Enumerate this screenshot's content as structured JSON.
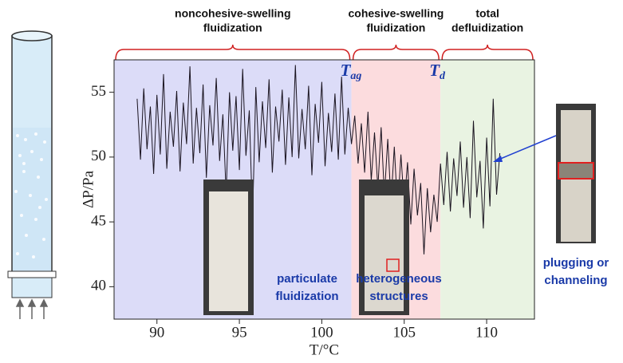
{
  "chart_data": {
    "type": "line",
    "x_label": "T/°C",
    "y_label": "ΔP/Pa",
    "xlim": [
      87.4,
      112.9
    ],
    "ylim": [
      37.5,
      57.5
    ],
    "xticks": [
      90,
      95,
      100,
      105,
      110
    ],
    "yticks": [
      40,
      45,
      50,
      55
    ],
    "boundaries": [
      101.8,
      107.2
    ],
    "regions": [
      {
        "lines": [
          "noncohesive-swelling",
          "fluidization"
        ],
        "color": "#dcdcf8",
        "note": [
          "particulate",
          "fluidization"
        ]
      },
      {
        "lines": [
          "cohesive-swelling",
          "fluidization"
        ],
        "color": "#fcdcde",
        "note": [
          "heterogeneous",
          "structures"
        ]
      },
      {
        "lines": [
          "total",
          "defluidization"
        ],
        "color": "#e9f3e2",
        "note": [
          "plugging or",
          "channeling"
        ]
      }
    ],
    "markers": [
      {
        "label": "T",
        "sub": "ag"
      },
      {
        "label": "T",
        "sub": "d"
      }
    ],
    "series": [
      {
        "color": "#1a1420",
        "x": [
          88.8,
          89.0,
          89.2,
          89.4,
          89.6,
          89.8,
          90.0,
          90.2,
          90.4,
          90.6,
          90.8,
          91.0,
          91.2,
          91.4,
          91.6,
          91.8,
          92.0,
          92.2,
          92.4,
          92.6,
          92.8,
          93.0,
          93.2,
          93.4,
          93.6,
          93.8,
          94.0,
          94.2,
          94.4,
          94.6,
          94.8,
          95.0,
          95.2,
          95.4,
          95.6,
          95.8,
          96.0,
          96.2,
          96.4,
          96.6,
          96.8,
          97.0,
          97.2,
          97.4,
          97.6,
          97.8,
          98.0,
          98.2,
          98.4,
          98.6,
          98.8,
          99.0,
          99.2,
          99.4,
          99.6,
          99.8,
          100.0,
          100.2,
          100.4,
          100.6,
          100.8,
          101.0,
          101.2,
          101.4,
          101.6,
          101.8,
          102.0,
          102.2,
          102.4,
          102.6,
          102.8,
          103.0,
          103.2,
          103.4,
          103.6,
          103.8,
          104.0,
          104.2,
          104.4,
          104.6,
          104.8,
          105.0,
          105.2,
          105.4,
          105.6,
          105.8,
          106.0,
          106.2,
          106.4,
          106.6,
          106.8,
          107.0,
          107.2,
          107.4,
          107.6,
          107.8,
          108.0,
          108.2,
          108.4,
          108.6,
          108.8,
          109.0,
          109.2,
          109.4,
          109.6,
          109.8,
          110.0,
          110.2,
          110.4,
          110.6,
          110.8
        ],
        "values": [
          54.5,
          49.8,
          55.3,
          50.6,
          53.9,
          48.7,
          54.8,
          50.2,
          56.4,
          49.1,
          53.5,
          50.8,
          55.1,
          48.9,
          54.2,
          51.0,
          57.0,
          49.5,
          53.8,
          50.3,
          55.6,
          48.4,
          54.0,
          50.9,
          56.1,
          49.7,
          53.3,
          47.2,
          55.0,
          50.5,
          54.7,
          49.0,
          56.8,
          50.1,
          53.6,
          45.2,
          55.4,
          49.6,
          54.3,
          50.7,
          56.0,
          48.8,
          53.9,
          51.2,
          55.2,
          49.4,
          54.6,
          50.0,
          57.1,
          49.9,
          53.7,
          50.6,
          55.5,
          48.6,
          54.1,
          51.1,
          55.8,
          49.3,
          53.4,
          50.4,
          54.9,
          49.8,
          56.2,
          50.2,
          53.8,
          51.0,
          53.2,
          49.5,
          52.6,
          48.8,
          53.5,
          48.2,
          51.9,
          47.6,
          52.3,
          47.0,
          51.4,
          46.5,
          50.8,
          45.9,
          50.2,
          46.3,
          49.6,
          44.8,
          49.1,
          45.5,
          48.0,
          42.5,
          47.6,
          44.2,
          47.1,
          45.0,
          49.5,
          46.3,
          50.4,
          45.8,
          49.9,
          47.0,
          51.2,
          46.1,
          50.0,
          45.3,
          52.8,
          46.9,
          49.7,
          44.5,
          51.5,
          46.2,
          54.5,
          47.1,
          50.3
        ]
      }
    ]
  }
}
